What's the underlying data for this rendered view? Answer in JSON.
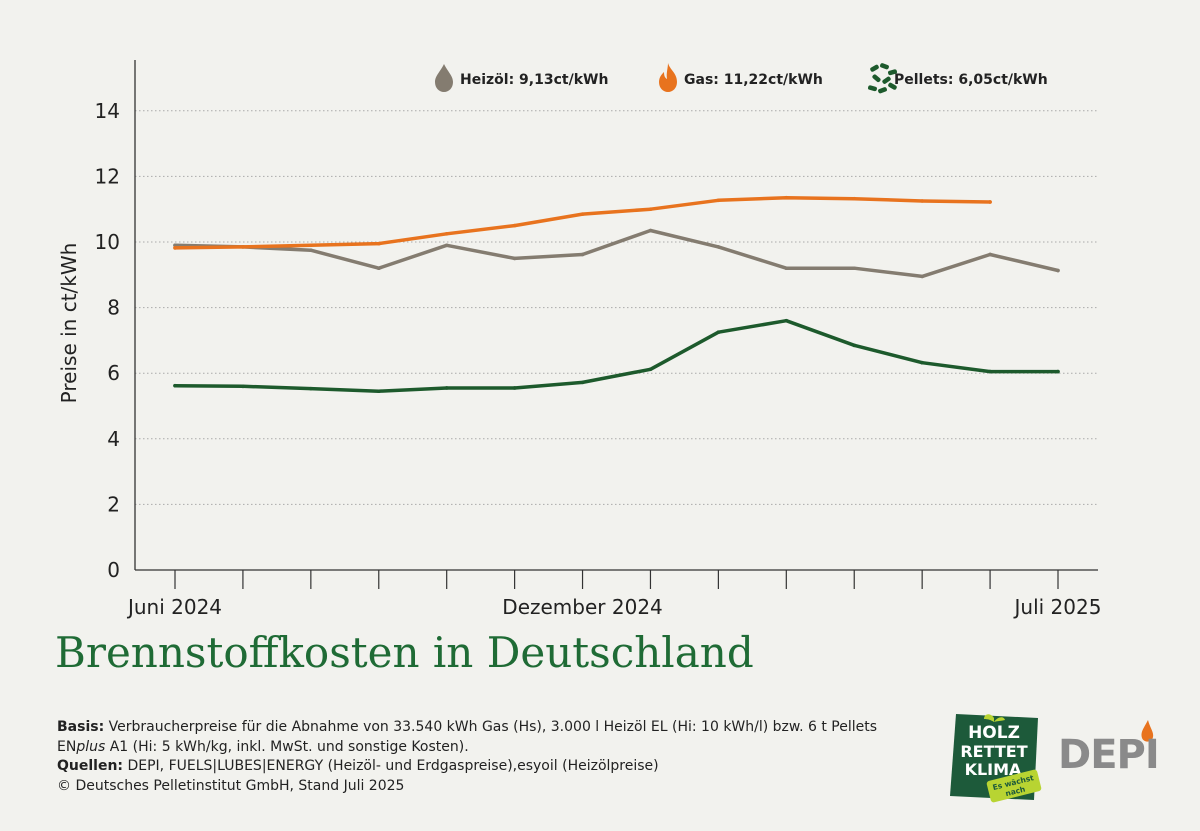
{
  "chart_data": {
    "type": "line",
    "title": "Brennstoffkosten in Deutschland",
    "ylabel": "Preise in ct/kWh",
    "xlabel": "",
    "ylim": [
      0,
      15
    ],
    "yticks": [
      0,
      2,
      4,
      6,
      8,
      10,
      12,
      14
    ],
    "x_tick_labels": [
      {
        "index": 0,
        "label": "Juni 2024"
      },
      {
        "index": 6,
        "label": "Dezember 2024"
      },
      {
        "index": 13,
        "label": "Juli 2025"
      }
    ],
    "x": [
      "2024-06",
      "2024-07",
      "2024-08",
      "2024-09",
      "2024-10",
      "2024-11",
      "2024-12",
      "2025-01",
      "2025-02",
      "2025-03",
      "2025-04",
      "2025-05",
      "2025-06",
      "2025-07"
    ],
    "grid": "horizontal dotted",
    "legend_position": "top",
    "series": [
      {
        "name": "Heizöl",
        "legend_label": "Heizöl: 9,13ct/kWh",
        "color": "#847c70",
        "icon": "oil-drop-icon",
        "values": [
          9.9,
          9.85,
          9.75,
          9.2,
          9.9,
          9.5,
          9.62,
          10.35,
          9.85,
          9.2,
          9.2,
          8.95,
          9.62,
          9.13
        ]
      },
      {
        "name": "Gas",
        "legend_label": "Gas: 11,22ct/kWh",
        "color": "#e8731e",
        "icon": "flame-icon",
        "values": [
          9.82,
          9.85,
          9.9,
          9.95,
          10.25,
          10.5,
          10.85,
          11.0,
          11.27,
          11.35,
          11.32,
          11.25,
          11.22,
          null
        ]
      },
      {
        "name": "Pellets",
        "legend_label": "Pellets: 6,05ct/kWh",
        "color": "#1d5a2c",
        "icon": "pellets-icon",
        "values": [
          5.62,
          5.6,
          5.53,
          5.45,
          5.55,
          5.55,
          5.72,
          6.12,
          7.25,
          7.6,
          6.85,
          6.32,
          6.05,
          6.05
        ]
      }
    ]
  },
  "footnote": {
    "basis_label": "Basis:",
    "basis_text_1": " Verbraucherpreise für die Abnahme von 33.540 kWh Gas (Hs), 3.000 l Heizöl EL (Hi: 10 kWh/l) bzw. 6 t Pellets EN",
    "basis_italic": "plus",
    "basis_text_2": " A1 (Hi: 5 kWh/kg, inkl. MwSt. und sonstige Kosten).",
    "quellen_label": "Quellen:",
    "quellen_text": " DEPI, FUELS|LUBES|ENERGY (Heizöl- und Erdgaspreise),esyoil (Heizölpreise)",
    "copyright": "© Deutsches Pelletinstitut GmbH, Stand Juli 2025"
  },
  "logos": {
    "holz_line1": "HOLZ",
    "holz_line2": "RETTET",
    "holz_line3": "KLIMA",
    "holz_badge_line1": "Es wächst",
    "holz_badge_line2": "nach",
    "holz_color": "#1d5a3a",
    "badge_color": "#b8d432",
    "depi_text": "DEPI",
    "depi_flame_color": "#e8731e"
  }
}
